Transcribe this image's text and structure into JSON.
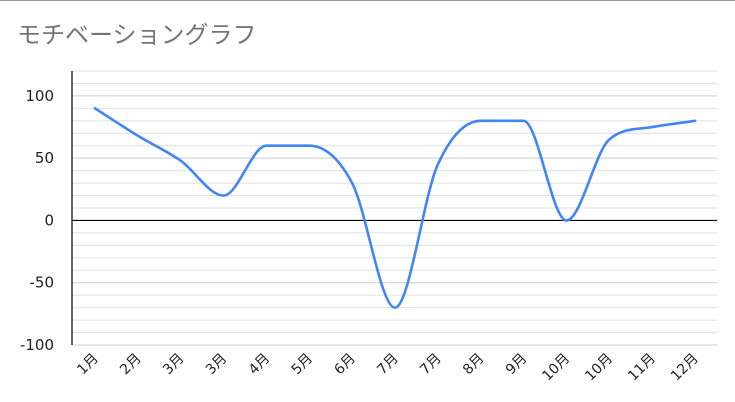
{
  "chart_data": {
    "type": "line",
    "title": "モチベーショングラフ",
    "xlabel": "",
    "ylabel": "",
    "categories": [
      "1月",
      "2月",
      "3月",
      "3月",
      "4月",
      "5月",
      "6月",
      "7月",
      "7月",
      "8月",
      "9月",
      "10月",
      "10月",
      "11月",
      "12月"
    ],
    "series": [
      {
        "name": "",
        "values": [
          90,
          68,
          48,
          20,
          60,
          60,
          30,
          -70,
          45,
          80,
          80,
          0,
          65,
          75,
          80
        ]
      }
    ],
    "ylim": [
      -100,
      120
    ],
    "yticks": [
      "100",
      "50",
      "0",
      "-50",
      "-100"
    ],
    "ytick_values": [
      100,
      50,
      0,
      -50,
      -100
    ],
    "grid": true,
    "colors": {
      "line": "#4285f4",
      "grid": "#e0e0e0",
      "axis": "#000000"
    }
  }
}
